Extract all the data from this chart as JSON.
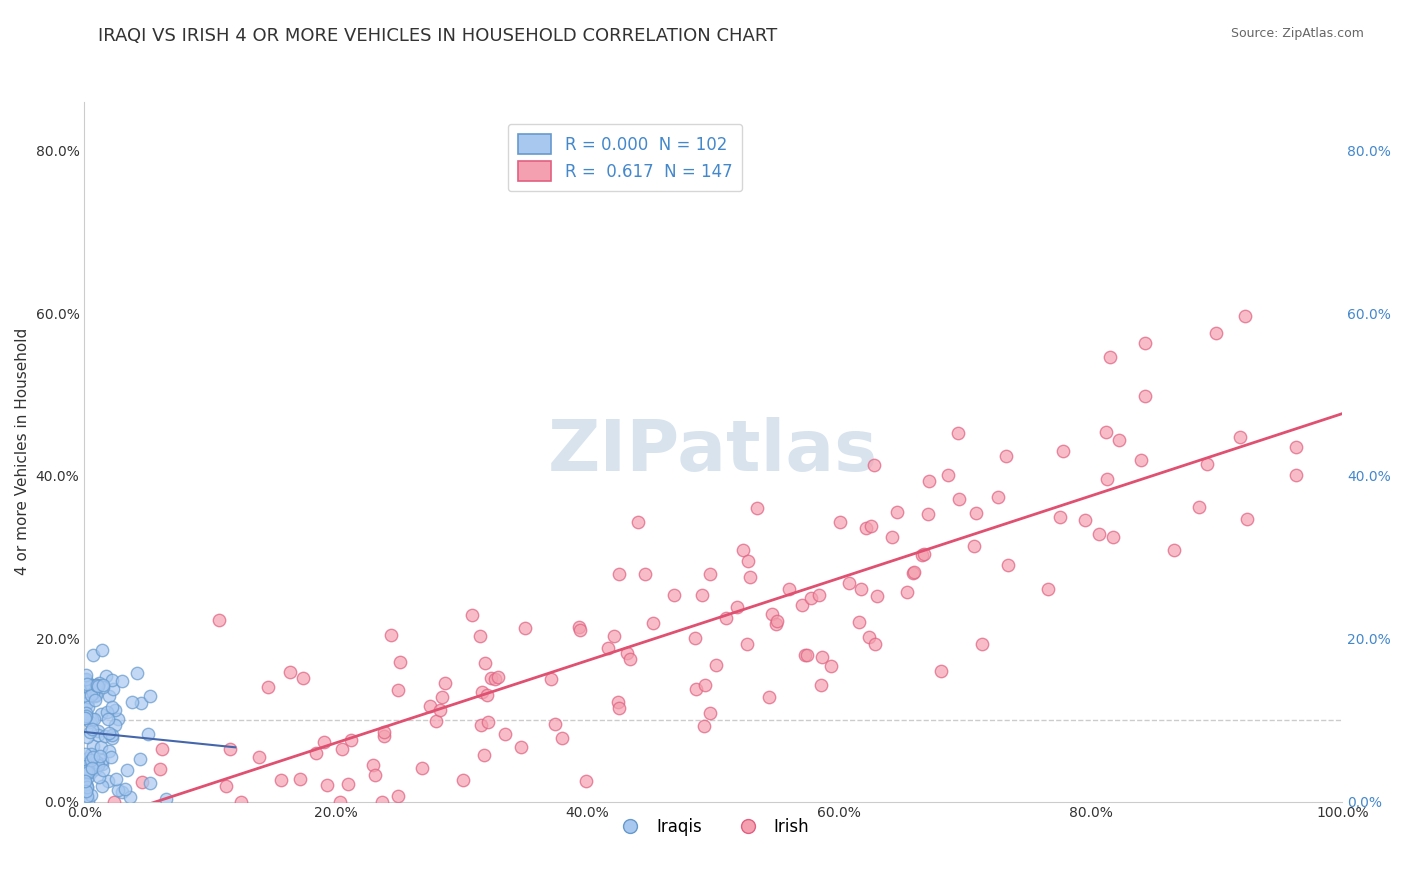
{
  "title": "IRAQI VS IRISH 4 OR MORE VEHICLES IN HOUSEHOLD CORRELATION CHART",
  "source": "Source: ZipAtlas.com",
  "xlabel": "",
  "ylabel": "4 or more Vehicles in Household",
  "legend_labels": [
    "Iraqis",
    "Irish"
  ],
  "legend_R": [
    "0.000",
    "0.617"
  ],
  "legend_N": [
    102,
    147
  ],
  "iraqi_color": "#a8c8f0",
  "irish_color": "#f4a0b0",
  "iraqi_edge": "#6699cc",
  "irish_edge": "#e06080",
  "regression_color_irish": "#e05070",
  "regression_color_iraqi": "#4466aa",
  "watermark": "ZIPatlas",
  "watermark_color": "#c8d8e8",
  "background_color": "#ffffff",
  "grid_color": "#cccccc",
  "xlim": [
    0.0,
    1.0
  ],
  "ylim": [
    0.0,
    0.86
  ],
  "xticks": [
    0.0,
    0.2,
    0.4,
    0.6,
    0.8,
    1.0
  ],
  "yticks": [
    0.0,
    0.2,
    0.4,
    0.6,
    0.8
  ],
  "xtick_labels": [
    "0.0%",
    "20.0%",
    "40.0%",
    "60.0%",
    "80.0%",
    "100.0%"
  ],
  "ytick_labels": [
    "0.0%",
    "20.0%",
    "40.0%",
    "60.0%",
    "80.0%"
  ],
  "title_fontsize": 13,
  "axis_label_fontsize": 11,
  "tick_fontsize": 10,
  "legend_fontsize": 12,
  "marker_size": 80,
  "iraqi_seed": 42,
  "irish_seed": 123,
  "dashed_hline_y": 0.1,
  "right_ytick_color": "#4488cc"
}
